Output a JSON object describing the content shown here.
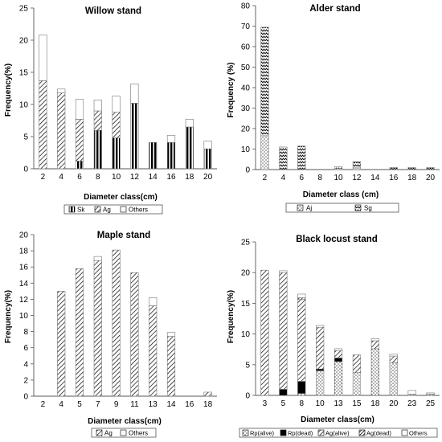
{
  "figure": {
    "panels": [
      {
        "id": "willow",
        "title": "Willow stand",
        "xlabel": "Diameter class(cm)",
        "ylabel": "Frequency(%)",
        "legend": [
          "Sk",
          "Ag",
          "Others"
        ]
      },
      {
        "id": "alder",
        "title": "Alder stand",
        "xlabel": "Diameter class (cm)",
        "ylabel": "Frequency (%)",
        "legend": [
          "Aj",
          "Sg"
        ]
      },
      {
        "id": "maple",
        "title": "Maple stand",
        "xlabel": "Diameter class(cm)",
        "ylabel": "Frequency(%)",
        "legend": [
          "Ag",
          "Others"
        ]
      },
      {
        "id": "locust",
        "title": "Black locust stand",
        "xlabel": "Diameter class(cm)",
        "ylabel": "Frequency(%)",
        "legend": [
          "Rp(alive)",
          "Rp(dead)",
          "Ag(alive)",
          "Ag(dead)",
          "Others"
        ]
      }
    ]
  },
  "chart_data": [
    {
      "type": "bar",
      "stacked": true,
      "title": "Willow stand",
      "xlabel": "Diameter class(cm)",
      "ylabel": "Frequency(%)",
      "ylim": [
        0,
        25
      ],
      "yticks": [
        0,
        5,
        10,
        15,
        20,
        25
      ],
      "categories": [
        "2",
        "4",
        "6",
        "8",
        "10",
        "12",
        "14",
        "16",
        "18",
        "20"
      ],
      "series": [
        {
          "name": "Sk",
          "values": [
            0,
            0,
            1.2,
            6,
            4.8,
            10.2,
            4.1,
            4.1,
            6.5,
            3.1
          ]
        },
        {
          "name": "Ag",
          "values": [
            13.7,
            11.8,
            6.5,
            3,
            4,
            0,
            0,
            0,
            0,
            0
          ]
        },
        {
          "name": "Others",
          "values": [
            7.1,
            0.6,
            3.1,
            1.7,
            2.5,
            3,
            0,
            1.1,
            1.2,
            1.2
          ]
        }
      ],
      "legend_position": "bottom"
    },
    {
      "type": "bar",
      "stacked": true,
      "title": "Alder stand",
      "xlabel": "Diameter class (cm)",
      "ylabel": "Frequency (%)",
      "ylim": [
        0,
        80
      ],
      "yticks": [
        0,
        10,
        20,
        30,
        40,
        50,
        60,
        70,
        80
      ],
      "categories": [
        "2",
        "4",
        "6",
        "8",
        "10",
        "12",
        "14",
        "16",
        "18",
        "20"
      ],
      "series": [
        {
          "name": "Aj",
          "values": [
            16.5,
            0,
            0,
            0,
            0.5,
            0.8,
            0,
            0,
            0,
            0
          ]
        },
        {
          "name": "Sg",
          "values": [
            53,
            11,
            11.5,
            0,
            0.8,
            3,
            0,
            1,
            1,
            1
          ]
        }
      ],
      "legend_position": "bottom"
    },
    {
      "type": "bar",
      "stacked": true,
      "title": "Maple stand",
      "xlabel": "Diameter class(cm)",
      "ylabel": "Frequency(%)",
      "ylim": [
        0,
        20
      ],
      "yticks": [
        0,
        2,
        4,
        6,
        8,
        10,
        12,
        14,
        16,
        18,
        20
      ],
      "categories": [
        "2",
        "4",
        "5",
        "7",
        "9",
        "11",
        "13",
        "14",
        "16",
        "18"
      ],
      "series": [
        {
          "name": "Ag",
          "values": [
            0,
            13,
            15.8,
            16.8,
            18.1,
            15.3,
            11.2,
            7.4,
            0,
            0.5
          ]
        },
        {
          "name": "Others",
          "values": [
            0,
            0,
            0,
            0.5,
            0,
            0,
            1,
            0.5,
            0,
            0
          ]
        }
      ],
      "legend_position": "bottom"
    },
    {
      "type": "bar",
      "stacked": true,
      "title": "Black locust stand",
      "xlabel": "Diameter class(cm)",
      "ylabel": "Frequency(%)",
      "ylim": [
        0,
        25
      ],
      "yticks": [
        0,
        5,
        10,
        15,
        20,
        25
      ],
      "categories": [
        "3",
        "5",
        "8",
        "10",
        "13",
        "15",
        "18",
        "20",
        "23",
        "25"
      ],
      "series": [
        {
          "name": "Rp(alive)",
          "values": [
            0,
            0,
            0.3,
            4,
            5.5,
            3.7,
            7.6,
            5.3,
            0.2,
            0.2
          ]
        },
        {
          "name": "Rp(dead)",
          "values": [
            0,
            1,
            2,
            0.3,
            0.6,
            0,
            0,
            0,
            0,
            0
          ]
        },
        {
          "name": "Ag(alive)",
          "values": [
            20.4,
            19,
            13.3,
            6.8,
            1.2,
            2.9,
            1.3,
            1.1,
            0,
            0
          ]
        },
        {
          "name": "Ag(dead)",
          "values": [
            0,
            0,
            0.3,
            0,
            0,
            0,
            0,
            0,
            0,
            0
          ]
        },
        {
          "name": "Others",
          "values": [
            0,
            0.3,
            0.6,
            0.3,
            0.3,
            0,
            0.3,
            0.3,
            0.6,
            0.2
          ]
        }
      ],
      "legend_position": "bottom"
    }
  ],
  "patterns": {
    "Sk": "vstripe",
    "Ag": "diag",
    "Others": "blank",
    "Aj": "dots",
    "Sg": "zigzag",
    "Rp(alive)": "dots",
    "Rp(dead)": "solid",
    "Ag(alive)": "diag",
    "Ag(dead)": "dense",
    "colors": {
      "ink": "#000000",
      "axis": "#555555",
      "grid": "#9a9a9a",
      "background": "#ffffff"
    }
  }
}
